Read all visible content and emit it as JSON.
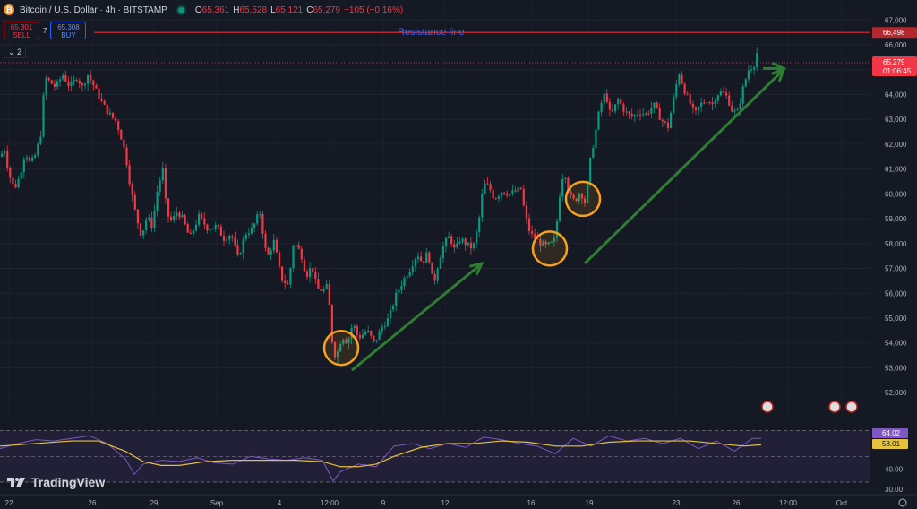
{
  "header": {
    "symbol": "Bitcoin / U.S. Dollar · 4h · BITSTAMP",
    "open": "65,361",
    "high": "65,528",
    "low": "65,121",
    "close": "65,279",
    "change": "−105 (−0.16%)"
  },
  "trade": {
    "sell_price": "65,301",
    "sell_label": "SELL",
    "spread": "7",
    "buy_price": "65,308",
    "buy_label": "BUY"
  },
  "collapse_label": "2",
  "brand": "TradingView",
  "colors": {
    "bg": "#151924",
    "up": "#089981",
    "down": "#f23645",
    "arrow": "#2e7d32",
    "resistance": "#b2282e",
    "circle": "#f7a21b",
    "rsi": "#7e57c2",
    "rsi_ma": "#e4c23c"
  },
  "chart_data": {
    "type": "candlestick",
    "interval": "4h",
    "ylim": [
      51500,
      67300
    ],
    "y_ticks": [
      "67,000",
      "66,000",
      "65,000",
      "64,000",
      "63,000",
      "62,000",
      "61,000",
      "60,000",
      "59,000",
      "58,000",
      "57,000",
      "56,000",
      "55,000",
      "54,000",
      "53,000",
      "52,000"
    ],
    "x_ticks": [
      "22",
      "26",
      "29",
      "Sep",
      "4",
      "12:00",
      "9",
      "12",
      "16",
      "19",
      "23",
      "26",
      "12:00",
      "Oct"
    ],
    "resistance": {
      "label": "Resistance line",
      "value": 66498,
      "value_label": "66,498"
    },
    "last_price": {
      "value": 65279,
      "label": "65,279",
      "countdown": "01:06:45"
    },
    "price_path": [
      [
        0,
        61500
      ],
      [
        5,
        61800
      ],
      [
        10,
        60800
      ],
      [
        16,
        60200
      ],
      [
        22,
        60700
      ],
      [
        28,
        61700
      ],
      [
        34,
        61200
      ],
      [
        40,
        61600
      ],
      [
        46,
        62500
      ],
      [
        50,
        64700
      ],
      [
        56,
        64500
      ],
      [
        62,
        64300
      ],
      [
        70,
        64800
      ],
      [
        78,
        64300
      ],
      [
        86,
        64700
      ],
      [
        92,
        64300
      ],
      [
        98,
        64800
      ],
      [
        104,
        64400
      ],
      [
        112,
        63800
      ],
      [
        120,
        63300
      ],
      [
        130,
        62900
      ],
      [
        136,
        62200
      ],
      [
        140,
        61600
      ],
      [
        146,
        60200
      ],
      [
        152,
        59100
      ],
      [
        158,
        58300
      ],
      [
        164,
        59100
      ],
      [
        170,
        58700
      ],
      [
        176,
        60200
      ],
      [
        182,
        61000
      ],
      [
        186,
        59200
      ],
      [
        192,
        58900
      ],
      [
        198,
        59300
      ],
      [
        204,
        59000
      ],
      [
        212,
        58200
      ],
      [
        222,
        59100
      ],
      [
        232,
        58600
      ],
      [
        242,
        58700
      ],
      [
        250,
        58200
      ],
      [
        258,
        58400
      ],
      [
        266,
        57400
      ],
      [
        274,
        58400
      ],
      [
        282,
        58600
      ],
      [
        290,
        59300
      ],
      [
        298,
        57400
      ],
      [
        306,
        58100
      ],
      [
        314,
        56600
      ],
      [
        322,
        56300
      ],
      [
        328,
        58100
      ],
      [
        336,
        57600
      ],
      [
        342,
        56700
      ],
      [
        348,
        57100
      ],
      [
        354,
        56200
      ],
      [
        360,
        56100
      ],
      [
        366,
        56300
      ],
      [
        372,
        53600
      ],
      [
        376,
        53500
      ],
      [
        382,
        54300
      ],
      [
        388,
        54000
      ],
      [
        394,
        54800
      ],
      [
        400,
        54200
      ],
      [
        410,
        54500
      ],
      [
        418,
        54000
      ],
      [
        426,
        54600
      ],
      [
        434,
        55000
      ],
      [
        442,
        55900
      ],
      [
        450,
        56500
      ],
      [
        458,
        57000
      ],
      [
        466,
        57600
      ],
      [
        472,
        57200
      ],
      [
        478,
        57700
      ],
      [
        484,
        56300
      ],
      [
        490,
        57300
      ],
      [
        496,
        58000
      ],
      [
        502,
        58300
      ],
      [
        508,
        57700
      ],
      [
        514,
        58200
      ],
      [
        520,
        58000
      ],
      [
        528,
        57800
      ],
      [
        534,
        58700
      ],
      [
        540,
        60400
      ],
      [
        546,
        60300
      ],
      [
        552,
        59800
      ],
      [
        560,
        60100
      ],
      [
        568,
        60000
      ],
      [
        576,
        60100
      ],
      [
        582,
        60200
      ],
      [
        586,
        59200
      ],
      [
        592,
        58400
      ],
      [
        598,
        58200
      ],
      [
        604,
        58000
      ],
      [
        610,
        57900
      ],
      [
        616,
        58000
      ],
      [
        620,
        58200
      ],
      [
        626,
        60300
      ],
      [
        630,
        61000
      ],
      [
        636,
        59900
      ],
      [
        642,
        59700
      ],
      [
        648,
        60100
      ],
      [
        654,
        59600
      ],
      [
        658,
        61100
      ],
      [
        664,
        62300
      ],
      [
        670,
        63500
      ],
      [
        676,
        64100
      ],
      [
        682,
        63100
      ],
      [
        690,
        63800
      ],
      [
        698,
        63300
      ],
      [
        706,
        63100
      ],
      [
        714,
        63300
      ],
      [
        722,
        63200
      ],
      [
        730,
        63600
      ],
      [
        738,
        63000
      ],
      [
        746,
        62700
      ],
      [
        752,
        63800
      ],
      [
        758,
        64900
      ],
      [
        764,
        64200
      ],
      [
        770,
        63700
      ],
      [
        776,
        63200
      ],
      [
        782,
        63600
      ],
      [
        790,
        63800
      ],
      [
        796,
        63600
      ],
      [
        800,
        64000
      ],
      [
        806,
        64100
      ],
      [
        812,
        63900
      ],
      [
        818,
        63300
      ],
      [
        824,
        63300
      ],
      [
        830,
        64300
      ],
      [
        836,
        65000
      ],
      [
        842,
        65200
      ],
      [
        846,
        65800
      ],
      [
        850,
        65279
      ]
    ],
    "annotations": {
      "arrows": [
        {
          "from": [
            393,
            52900
          ],
          "to": [
            538,
            57200
          ]
        },
        {
          "from": [
            653,
            57200
          ],
          "to": [
            875,
            65000
          ]
        }
      ],
      "circles": [
        {
          "x": 381,
          "y": 53800
        },
        {
          "x": 614,
          "y": 57800
        },
        {
          "x": 651,
          "y": 59800
        }
      ],
      "arrow_short": {
        "from": [
          852,
          65050
        ],
        "to": [
          875,
          65050
        ]
      }
    },
    "rsi": {
      "ylim": [
        30,
        76
      ],
      "levels": [
        70,
        50,
        30
      ],
      "tick_labels": [
        "40.00",
        "30.00"
      ],
      "value_label": "64.02",
      "ma_label": "58.01",
      "rsi_path": [
        [
          0,
          56
        ],
        [
          20,
          60
        ],
        [
          40,
          63
        ],
        [
          60,
          62
        ],
        [
          80,
          64
        ],
        [
          100,
          66
        ],
        [
          120,
          60
        ],
        [
          140,
          48
        ],
        [
          150,
          36
        ],
        [
          160,
          44
        ],
        [
          180,
          47
        ],
        [
          200,
          46
        ],
        [
          220,
          49
        ],
        [
          240,
          45
        ],
        [
          260,
          44
        ],
        [
          280,
          50
        ],
        [
          300,
          48
        ],
        [
          320,
          47
        ],
        [
          340,
          49
        ],
        [
          360,
          47
        ],
        [
          372,
          31
        ],
        [
          380,
          38
        ],
        [
          400,
          44
        ],
        [
          420,
          42
        ],
        [
          440,
          58
        ],
        [
          460,
          60
        ],
        [
          480,
          56
        ],
        [
          500,
          60
        ],
        [
          520,
          57
        ],
        [
          540,
          65
        ],
        [
          560,
          63
        ],
        [
          580,
          60
        ],
        [
          600,
          58
        ],
        [
          620,
          52
        ],
        [
          640,
          64
        ],
        [
          660,
          58
        ],
        [
          680,
          66
        ],
        [
          700,
          62
        ],
        [
          720,
          64
        ],
        [
          740,
          60
        ],
        [
          760,
          64
        ],
        [
          780,
          56
        ],
        [
          800,
          62
        ],
        [
          820,
          54
        ],
        [
          840,
          64
        ],
        [
          850,
          64
        ]
      ],
      "ma_path": [
        [
          0,
          58
        ],
        [
          40,
          60
        ],
        [
          80,
          62
        ],
        [
          110,
          62
        ],
        [
          140,
          54
        ],
        [
          160,
          46
        ],
        [
          180,
          43
        ],
        [
          200,
          43
        ],
        [
          230,
          46
        ],
        [
          260,
          47
        ],
        [
          300,
          47
        ],
        [
          330,
          47
        ],
        [
          360,
          46
        ],
        [
          380,
          42
        ],
        [
          400,
          42
        ],
        [
          420,
          44
        ],
        [
          440,
          50
        ],
        [
          470,
          57
        ],
        [
          500,
          60
        ],
        [
          530,
          60
        ],
        [
          560,
          62
        ],
        [
          590,
          61
        ],
        [
          620,
          58
        ],
        [
          650,
          58
        ],
        [
          680,
          61
        ],
        [
          710,
          62
        ],
        [
          740,
          62
        ],
        [
          770,
          62
        ],
        [
          800,
          60
        ],
        [
          830,
          58
        ],
        [
          850,
          59
        ]
      ]
    }
  }
}
